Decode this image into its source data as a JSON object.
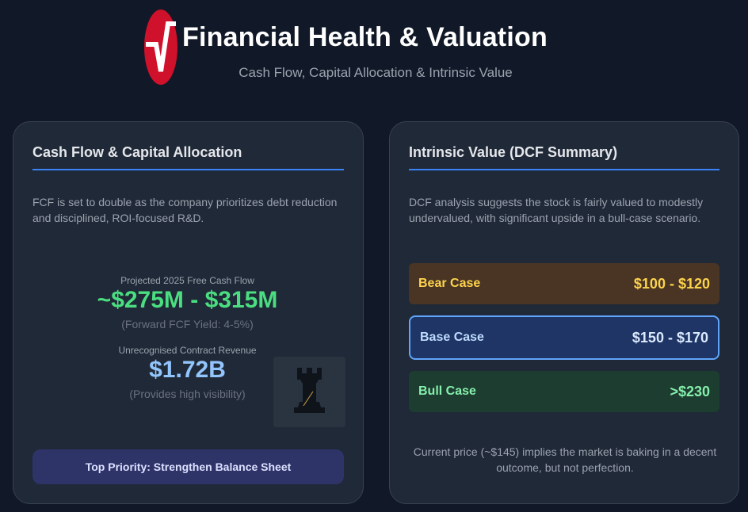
{
  "header": {
    "title": "Financial Health & Valuation",
    "subtitle": "Cash Flow, Capital Allocation & Intrinsic Value",
    "logo_icon": "red-pulse-logo-icon"
  },
  "left_card": {
    "title": "Cash Flow & Capital Allocation",
    "description": "FCF is set to double as the company prioritizes debt reduction and disciplined, ROI-focused R&D.",
    "fcf": {
      "label": "Projected 2025 Free Cash Flow",
      "value": "~$275M - $315M",
      "note": "(Forward FCF Yield: 4-5%)"
    },
    "contract": {
      "label": "Unrecognised Contract Revenue",
      "value": "$1.72B",
      "note": "(Provides high visibility)"
    },
    "illustration_icon": "chess-rook-icon",
    "priority": "Top Priority: Strengthen Balance Sheet"
  },
  "right_card": {
    "title": "Intrinsic Value (DCF Summary)",
    "description": "DCF analysis suggests the stock is fairly valued to modestly undervalued, with significant upside in a bull-case scenario.",
    "cases": [
      {
        "name": "Bear Case",
        "value": "$100 - $120"
      },
      {
        "name": "Base Case",
        "value": "$150 - $170"
      },
      {
        "name": "Bull Case",
        "value": ">$230"
      }
    ],
    "footnote": "Current price (~$145) implies the market is baking in a decent outcome, but not perfection."
  },
  "colors": {
    "background": "#111827",
    "card": "#1f2937",
    "accent_blue": "#3b82f6",
    "green": "#4ade80",
    "logo_red": "#d0112b"
  }
}
